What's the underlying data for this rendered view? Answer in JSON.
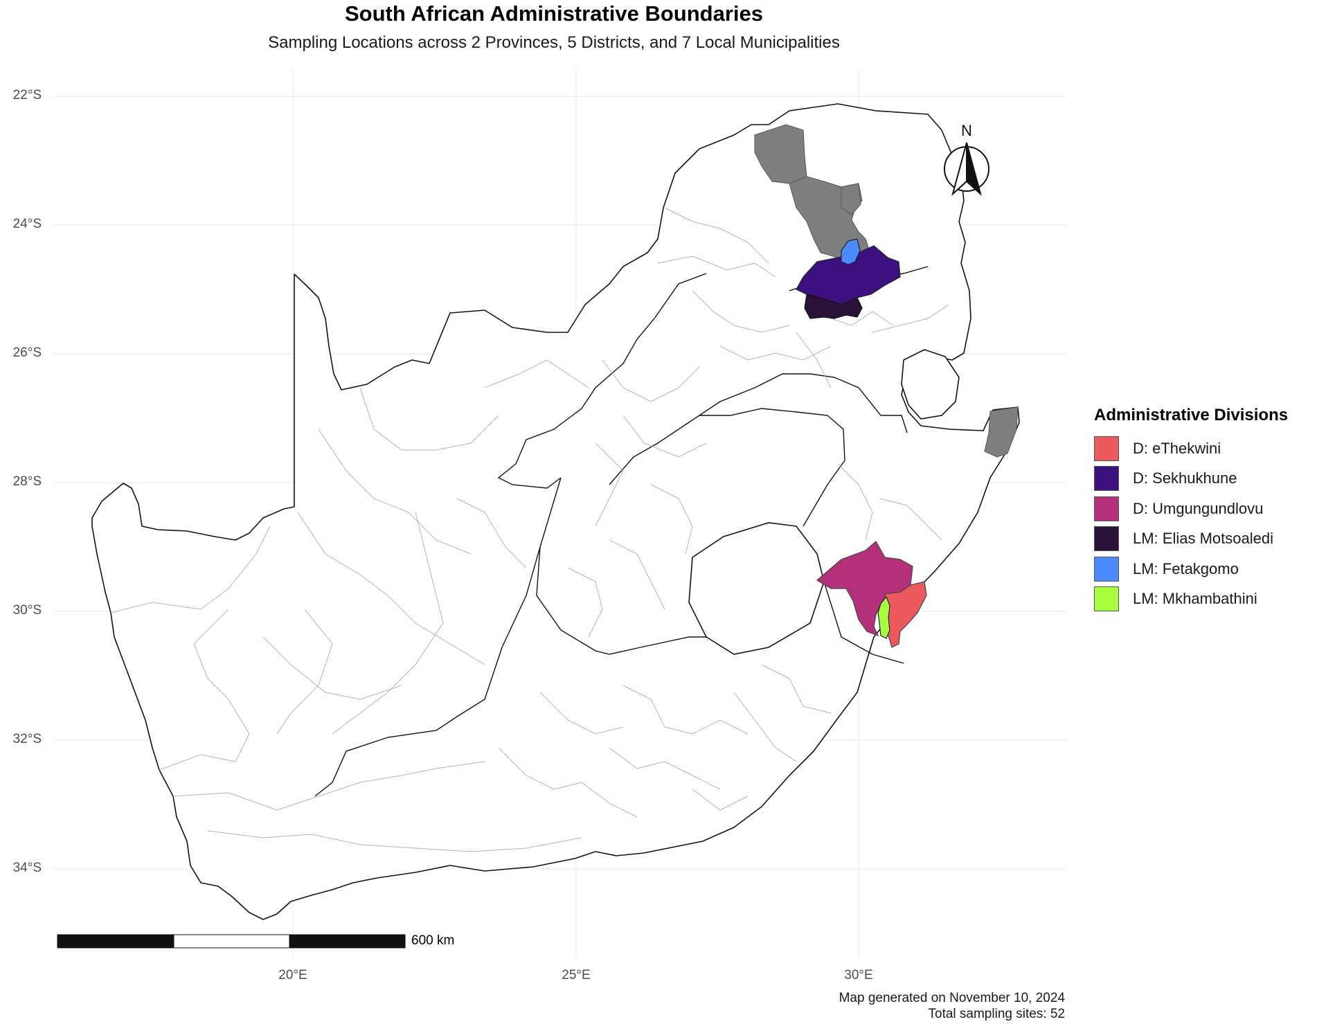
{
  "chart_data": {
    "type": "map",
    "title": "South African Administrative Boundaries",
    "subtitle": "Sampling Locations across 2 Provinces, 5 Districts, and 7 Local Municipalities",
    "y_ticks": [
      "22°S",
      "24°S",
      "26°S",
      "28°S",
      "30°S",
      "32°S",
      "34°S"
    ],
    "x_ticks": [
      "20°E",
      "25°E",
      "30°E"
    ],
    "grid": true,
    "legend": {
      "title": "Administrative Divisions",
      "placement": "right",
      "items": [
        {
          "label": "D: eThekwini",
          "color": "#ec5a5e"
        },
        {
          "label": "D: Sekhukhune",
          "color": "#3d1080"
        },
        {
          "label": "D: Umgungundlovu",
          "color": "#b5307a"
        },
        {
          "label": "LM: Elias Motsoaledi",
          "color": "#2b1238"
        },
        {
          "label": "LM: Fetakgomo",
          "color": "#4a8cff"
        },
        {
          "label": "LM: Mkhambathini",
          "color": "#a6ff3c"
        }
      ]
    },
    "other_highlight_color": "#7f7f7f",
    "north_arrow_label": "N",
    "scale_bar_label": "600 km",
    "caption_lines": [
      "Map generated on November 10, 2024",
      "Total sampling sites: 52"
    ]
  }
}
